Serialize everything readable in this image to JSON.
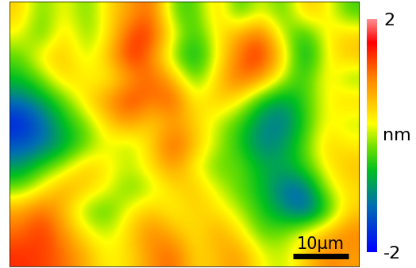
{
  "chart_data": {
    "type": "heatmap",
    "xlim": [
      0,
      63
    ],
    "ylim": [
      0,
      48
    ],
    "tick_labels": false,
    "cells": [
      [
        0.5,
        -0.3,
        0.3,
        -0.3,
        0.4,
        0.8,
        1.2,
        -0.3,
        -0.4,
        0.6,
        -0.5,
        0.2,
        -0.4,
        0.6,
        0.3,
        -0.4
      ],
      [
        0.2,
        -0.4,
        0.5,
        -0.2,
        0.3,
        1.3,
        1.4,
        0.2,
        -0.5,
        0.3,
        0.8,
        1.2,
        0.0,
        -0.6,
        0.3,
        0.5
      ],
      [
        -0.3,
        0.4,
        0.6,
        0.0,
        0.6,
        1.5,
        1.0,
        -0.2,
        -0.8,
        0.2,
        1.1,
        1.5,
        0.5,
        -0.9,
        0.2,
        0.6
      ],
      [
        -0.6,
        -0.2,
        0.5,
        0.3,
        0.2,
        0.8,
        1.2,
        0.7,
        -0.4,
        0.5,
        1.2,
        0.9,
        0.0,
        -0.5,
        0.4,
        -0.2
      ],
      [
        -1.2,
        -0.8,
        -0.3,
        0.4,
        0.9,
        1.4,
        1.0,
        1.3,
        0.2,
        0.6,
        0.3,
        -0.6,
        -0.9,
        -0.4,
        0.2,
        0.5
      ],
      [
        -1.8,
        -1.3,
        -0.6,
        -0.2,
        0.5,
        0.9,
        0.4,
        0.8,
        0.5,
        0.0,
        -0.4,
        -1.0,
        -1.2,
        -0.5,
        0.3,
        0.0
      ],
      [
        -1.4,
        -1.2,
        -0.8,
        -0.3,
        0.2,
        -0.1,
        0.5,
        1.3,
        0.6,
        0.0,
        -0.5,
        -1.1,
        -0.9,
        -0.3,
        0.5,
        0.3
      ],
      [
        -0.9,
        -0.4,
        0.0,
        0.6,
        0.3,
        0.0,
        0.4,
        0.9,
        0.2,
        -0.3,
        -0.2,
        -0.7,
        -0.8,
        -0.4,
        0.3,
        0.6
      ],
      [
        -0.2,
        0.3,
        0.8,
        0.5,
        0.2,
        -0.3,
        0.0,
        0.4,
        0.6,
        0.1,
        -0.3,
        -0.6,
        -1.2,
        -1.3,
        0.0,
        0.4
      ],
      [
        0.8,
        1.2,
        0.6,
        -0.2,
        -0.4,
        0.3,
        0.6,
        0.2,
        0.5,
        0.4,
        0.0,
        -0.5,
        -0.9,
        -1.4,
        -0.6,
        0.5
      ],
      [
        1.1,
        1.4,
        0.9,
        0.3,
        0.0,
        0.5,
        1.0,
        0.7,
        0.3,
        0.8,
        0.4,
        -0.3,
        -0.2,
        0.3,
        0.7,
        1.0
      ],
      [
        1.4,
        1.3,
        1.1,
        0.7,
        0.2,
        0.4,
        0.9,
        1.2,
        0.4,
        0.6,
        0.9,
        0.2,
        0.0,
        0.5,
        1.0,
        0.8
      ]
    ],
    "colorbar": {
      "range": [
        -2,
        2
      ],
      "ticks": [
        -2,
        2
      ],
      "label": "nm"
    },
    "scale_bar": {
      "length": 10,
      "label": "10µm"
    }
  }
}
